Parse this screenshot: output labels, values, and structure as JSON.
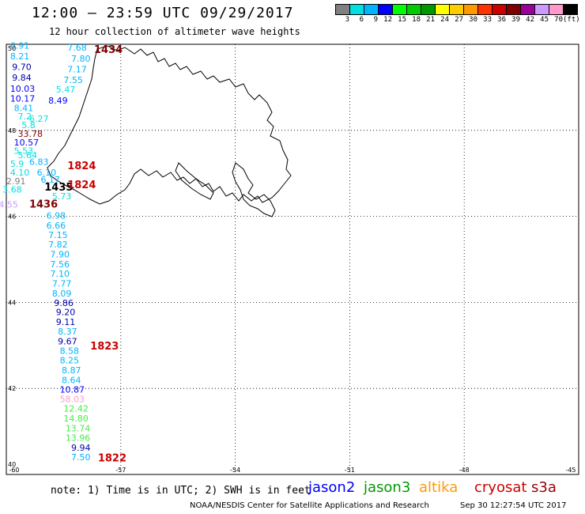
{
  "title": "12:00 — 23:59 UTC 09/29/2017",
  "subtitle": "12 hour collection of altimeter wave heights",
  "colorbar": {
    "colors": [
      "#808080",
      "#00e0e0",
      "#00b4ff",
      "#0000ff",
      "#00ff00",
      "#00cc00",
      "#009900",
      "#ffff00",
      "#ffcc00",
      "#ff9900",
      "#ff3300",
      "#cc0000",
      "#800000",
      "#990099",
      "#cc99ff",
      "#ff99cc",
      "#000000"
    ],
    "labels": [
      "3",
      "6",
      "9",
      "12",
      "15",
      "18",
      "21",
      "24",
      "27",
      "30",
      "33",
      "36",
      "39",
      "42",
      "45",
      "70",
      "(ft)"
    ]
  },
  "axes": {
    "lon_ticks": [
      "-60",
      "-57",
      "-54",
      "-51",
      "-48",
      "-45"
    ],
    "lat_ticks": [
      "50",
      "48",
      "46",
      "44",
      "42",
      "40"
    ]
  },
  "time_labels": [
    {
      "text": "1434",
      "lon": -57.7,
      "lat": 49.8,
      "color": "#800000"
    },
    {
      "text": "1824",
      "lon": -58.4,
      "lat": 47.1,
      "color": "#cc0000"
    },
    {
      "text": "1435",
      "lon": -59.0,
      "lat": 46.6,
      "color": "#000000"
    },
    {
      "text": "1824",
      "lon": -58.4,
      "lat": 46.65,
      "color": "#cc0000"
    },
    {
      "text": "1436",
      "lon": -59.4,
      "lat": 46.2,
      "color": "#800000"
    },
    {
      "text": "1823",
      "lon": -57.8,
      "lat": 42.9,
      "color": "#cc0000"
    },
    {
      "text": "1822",
      "lon": -57.6,
      "lat": 40.3,
      "color": "#cc0000"
    }
  ],
  "wave_heights": [
    {
      "text": "6.91",
      "lon": -59.9,
      "lat": 49.9,
      "color": "#00b4ff"
    },
    {
      "text": "7.68",
      "lon": -58.4,
      "lat": 49.85,
      "color": "#00b4ff"
    },
    {
      "text": "8.21",
      "lon": -59.9,
      "lat": 49.65,
      "color": "#00b4ff"
    },
    {
      "text": "7.80",
      "lon": -58.3,
      "lat": 49.6,
      "color": "#00b4ff"
    },
    {
      "text": "9.70",
      "lon": -59.85,
      "lat": 49.4,
      "color": "#0000aa"
    },
    {
      "text": "7.17",
      "lon": -58.4,
      "lat": 49.35,
      "color": "#00b4ff"
    },
    {
      "text": "9.84",
      "lon": -59.85,
      "lat": 49.15,
      "color": "#0000aa"
    },
    {
      "text": "7.55",
      "lon": -58.5,
      "lat": 49.1,
      "color": "#00b4ff"
    },
    {
      "text": "10.03",
      "lon": -59.9,
      "lat": 48.9,
      "color": "#0000ff"
    },
    {
      "text": "5.47",
      "lon": -58.7,
      "lat": 48.88,
      "color": "#00e0e0"
    },
    {
      "text": "10.17",
      "lon": -59.9,
      "lat": 48.67,
      "color": "#0000ff"
    },
    {
      "text": "8.49",
      "lon": -58.9,
      "lat": 48.62,
      "color": "#0000ff"
    },
    {
      "text": "8.41",
      "lon": -59.8,
      "lat": 48.45,
      "color": "#00b4ff"
    },
    {
      "text": "7.2",
      "lon": -59.7,
      "lat": 48.25,
      "color": "#00e0e0"
    },
    {
      "text": "6.27",
      "lon": -59.4,
      "lat": 48.2,
      "color": "#00e0e0"
    },
    {
      "text": "5.8",
      "lon": -59.6,
      "lat": 48.05,
      "color": "#00e0e0"
    },
    {
      "text": "33.78",
      "lon": -59.7,
      "lat": 47.85,
      "color": "#800000"
    },
    {
      "text": "10.57",
      "lon": -59.8,
      "lat": 47.65,
      "color": "#0000ff"
    },
    {
      "text": "5.53",
      "lon": -59.8,
      "lat": 47.45,
      "color": "#00e0e0"
    },
    {
      "text": "5.64",
      "lon": -59.7,
      "lat": 47.35,
      "color": "#00e0e0"
    },
    {
      "text": "5.9",
      "lon": -59.9,
      "lat": 47.15,
      "color": "#00e0e0"
    },
    {
      "text": "6.83",
      "lon": -59.4,
      "lat": 47.2,
      "color": "#00b4ff"
    },
    {
      "text": "4.10",
      "lon": -59.9,
      "lat": 46.95,
      "color": "#00e0e0"
    },
    {
      "text": "6.10",
      "lon": -59.2,
      "lat": 46.95,
      "color": "#00b4ff"
    },
    {
      "text": "2.91",
      "lon": -60.0,
      "lat": 46.75,
      "color": "#808080"
    },
    {
      "text": "6.17",
      "lon": -59.1,
      "lat": 46.78,
      "color": "#00b4ff"
    },
    {
      "text": "3.68",
      "lon": -60.1,
      "lat": 46.55,
      "color": "#00e0e0"
    },
    {
      "text": "5.73",
      "lon": -58.8,
      "lat": 46.4,
      "color": "#00e0e0"
    },
    {
      "text": "4.55",
      "lon": -60.2,
      "lat": 46.2,
      "color": "#cc99ff"
    },
    {
      "text": "6.98",
      "lon": -58.95,
      "lat": 45.95,
      "color": "#00b4ff"
    },
    {
      "text": "6.66",
      "lon": -58.95,
      "lat": 45.72,
      "color": "#00b4ff"
    },
    {
      "text": "7.15",
      "lon": -58.9,
      "lat": 45.5,
      "color": "#00b4ff"
    },
    {
      "text": "7.82",
      "lon": -58.9,
      "lat": 45.28,
      "color": "#00b4ff"
    },
    {
      "text": "7.90",
      "lon": -58.85,
      "lat": 45.05,
      "color": "#00b4ff"
    },
    {
      "text": "7.56",
      "lon": -58.85,
      "lat": 44.82,
      "color": "#00b4ff"
    },
    {
      "text": "7.10",
      "lon": -58.85,
      "lat": 44.6,
      "color": "#00b4ff"
    },
    {
      "text": "7.77",
      "lon": -58.8,
      "lat": 44.37,
      "color": "#00b4ff"
    },
    {
      "text": "8.09",
      "lon": -58.8,
      "lat": 44.14,
      "color": "#00b4ff"
    },
    {
      "text": "9.86",
      "lon": -58.75,
      "lat": 43.92,
      "color": "#0000aa"
    },
    {
      "text": "9.20",
      "lon": -58.7,
      "lat": 43.7,
      "color": "#0000aa"
    },
    {
      "text": "9.11",
      "lon": -58.7,
      "lat": 43.47,
      "color": "#0000aa"
    },
    {
      "text": "8.37",
      "lon": -58.65,
      "lat": 43.25,
      "color": "#00b4ff"
    },
    {
      "text": "9.67",
      "lon": -58.65,
      "lat": 43.02,
      "color": "#0000aa"
    },
    {
      "text": "8.58",
      "lon": -58.6,
      "lat": 42.8,
      "color": "#00b4ff"
    },
    {
      "text": "8.25",
      "lon": -58.6,
      "lat": 42.58,
      "color": "#00b4ff"
    },
    {
      "text": "8.87",
      "lon": -58.55,
      "lat": 42.35,
      "color": "#00b4ff"
    },
    {
      "text": "8.64",
      "lon": -58.55,
      "lat": 42.12,
      "color": "#00b4ff"
    },
    {
      "text": "10.87",
      "lon": -58.6,
      "lat": 41.9,
      "color": "#0000ff"
    },
    {
      "text": "58.03",
      "lon": -58.6,
      "lat": 41.68,
      "color": "#ff99cc"
    },
    {
      "text": "12.42",
      "lon": -58.5,
      "lat": 41.46,
      "color": "#44ee44"
    },
    {
      "text": "14.80",
      "lon": -58.5,
      "lat": 41.23,
      "color": "#44ee44"
    },
    {
      "text": "13.74",
      "lon": -58.45,
      "lat": 41.0,
      "color": "#44ee44"
    },
    {
      "text": "13.96",
      "lon": -58.45,
      "lat": 40.78,
      "color": "#44ee44"
    },
    {
      "text": "9.94",
      "lon": -58.3,
      "lat": 40.55,
      "color": "#0000aa"
    },
    {
      "text": "7.50",
      "lon": -58.3,
      "lat": 40.33,
      "color": "#00b4ff"
    }
  ],
  "note": "note: 1) Time is in UTC; 2) SWH is in feet",
  "satellites": [
    {
      "name": "jason2",
      "color": "#0000ff"
    },
    {
      "name": "jason3",
      "color": "#009900"
    },
    {
      "name": "altika",
      "color": "#ff9900"
    },
    {
      "name": "cryosat",
      "color": "#cc0000"
    },
    {
      "name": "s3a",
      "color": "#990000"
    }
  ],
  "footer": "NOAA/NESDIS Center for Satellite Applications and Research",
  "footer_ts": "Sep 30 12:27:54 UTC 2017"
}
